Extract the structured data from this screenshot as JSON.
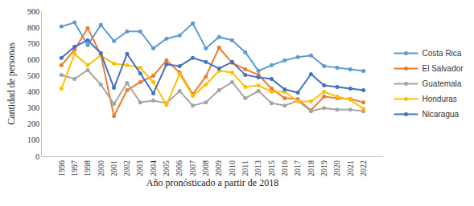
{
  "chart_data": {
    "type": "line",
    "x_label": "Año pronósticado a partir de 2018",
    "y_label": "Cantidad de personas",
    "categories": [
      "1996",
      "1997",
      "1998",
      "2000",
      "2001",
      "2002",
      "2003",
      "2004",
      "2005",
      "2006",
      "2007",
      "2008",
      "2009",
      "2010",
      "2011",
      "2013",
      "2015",
      "2016",
      "2017",
      "2018",
      "2019",
      "2020",
      "2021",
      "2022"
    ],
    "series": [
      {
        "name": "Costa Rica",
        "color": "#5b9bd5",
        "values": [
          805,
          830,
          690,
          815,
          715,
          775,
          775,
          670,
          730,
          750,
          825,
          670,
          740,
          720,
          645,
          530,
          565,
          595,
          615,
          625,
          560,
          550,
          540,
          530
        ]
      },
      {
        "name": "El Salvador",
        "color": "#ed7d31",
        "values": [
          565,
          660,
          795,
          630,
          250,
          410,
          460,
          500,
          595,
          520,
          385,
          495,
          675,
          580,
          540,
          505,
          420,
          360,
          355,
          285,
          370,
          360,
          355,
          335
        ]
      },
      {
        "name": "Guatemala",
        "color": "#a5a5a5",
        "values": [
          505,
          480,
          535,
          445,
          325,
          455,
          335,
          345,
          330,
          405,
          315,
          335,
          410,
          460,
          360,
          405,
          330,
          315,
          345,
          280,
          300,
          290,
          290,
          280
        ]
      },
      {
        "name": "Honduras",
        "color": "#ffc000",
        "values": [
          420,
          635,
          565,
          625,
          575,
          565,
          550,
          460,
          320,
          510,
          375,
          445,
          530,
          520,
          430,
          440,
          400,
          400,
          340,
          340,
          400,
          370,
          350,
          295
        ]
      },
      {
        "name": "Nicaragua",
        "color": "#4472c4",
        "values": [
          610,
          680,
          720,
          640,
          425,
          635,
          515,
          390,
          570,
          560,
          610,
          585,
          545,
          585,
          505,
          490,
          480,
          415,
          395,
          510,
          440,
          430,
          420,
          410
        ]
      }
    ],
    "ylim": [
      0,
      900
    ],
    "yticks": [
      0,
      100,
      200,
      300,
      400,
      500,
      600,
      700,
      800,
      900
    ],
    "grid": false,
    "legend": "right",
    "marker": "circle",
    "line_style": "solid"
  }
}
